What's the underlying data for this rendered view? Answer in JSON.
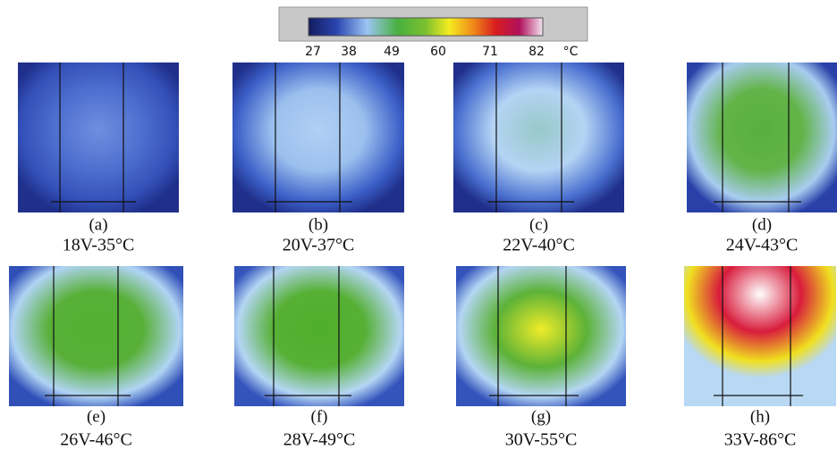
{
  "colorbar": {
    "ticks": [
      27,
      38,
      49,
      60,
      71,
      82
    ],
    "unit": "°C"
  },
  "panels": [
    {
      "label": "(a)",
      "caption": "18V-35°C"
    },
    {
      "label": "(b)",
      "caption": "20V-37°C"
    },
    {
      "label": "(c)",
      "caption": "22V-40°C"
    },
    {
      "label": "(d)",
      "caption": "24V-43°C"
    },
    {
      "label": "(e)",
      "caption": "26V-46°C"
    },
    {
      "label": "(f)",
      "caption": "28V-49°C"
    },
    {
      "label": "(g)",
      "caption": "30V-55°C"
    },
    {
      "label": "(h)",
      "caption": "33V-86°C"
    }
  ]
}
